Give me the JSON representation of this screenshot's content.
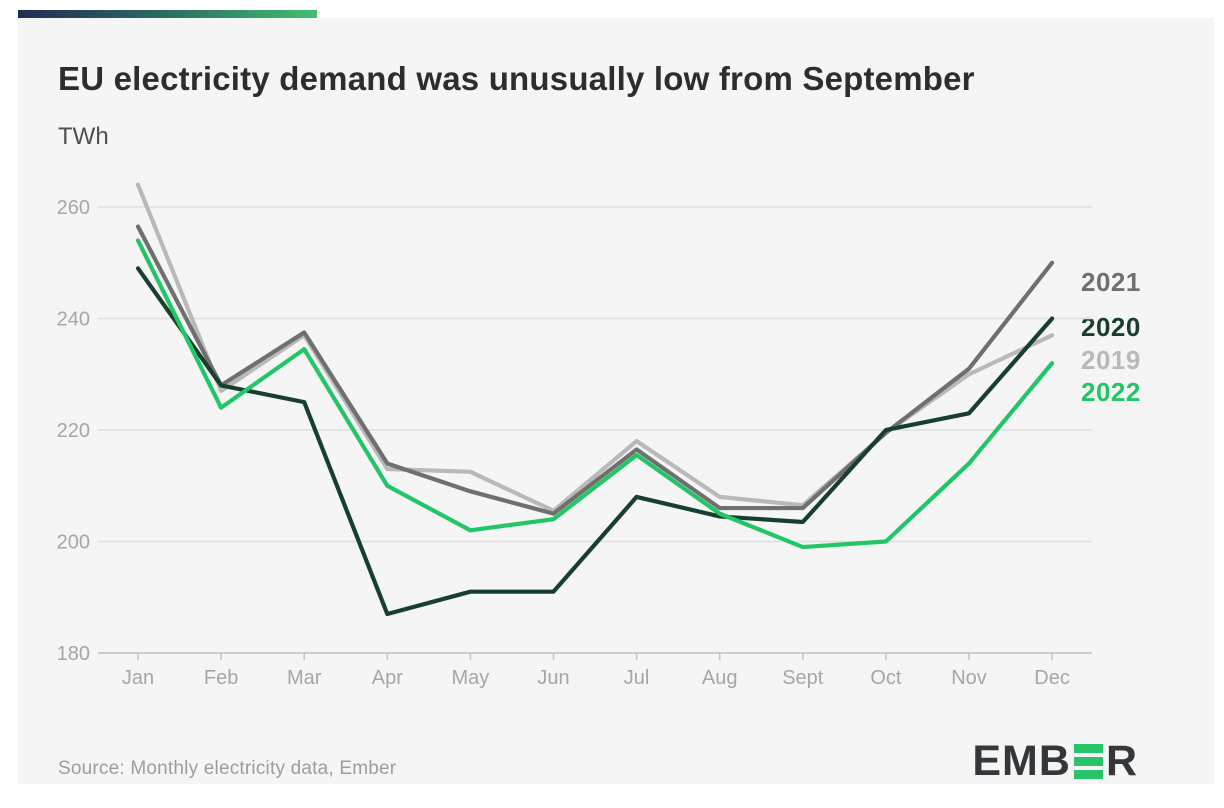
{
  "header": {
    "title": "EU electricity demand was unusually low from September",
    "unit_label": "TWh"
  },
  "chart_data": {
    "type": "line",
    "title": "EU electricity demand was unusually low from September",
    "ylabel": "TWh",
    "xlabel": "",
    "x": [
      "Jan",
      "Feb",
      "Mar",
      "Apr",
      "May",
      "Jun",
      "Jul",
      "Aug",
      "Sept",
      "Oct",
      "Nov",
      "Dec"
    ],
    "ylim": [
      180,
      266
    ],
    "yticks": [
      180,
      200,
      220,
      240,
      260
    ],
    "grid": true,
    "legend_position": "right-of-line-ends",
    "series": [
      {
        "name": "2019",
        "color": "#b9b9b9",
        "values": [
          264,
          227,
          237,
          213,
          212.5,
          205.5,
          218,
          208,
          206.5,
          219.5,
          230,
          237
        ]
      },
      {
        "name": "2021",
        "color": "#6f6f6f",
        "values": [
          256.5,
          228,
          237.5,
          214,
          209,
          205,
          216.5,
          206,
          206,
          219.5,
          231,
          250
        ]
      },
      {
        "name": "2020",
        "color": "#16402d",
        "values": [
          249,
          228,
          225,
          187,
          191,
          191,
          208,
          204.5,
          203.5,
          220,
          223,
          240
        ]
      },
      {
        "name": "2022",
        "color": "#22c666",
        "values": [
          254,
          224,
          234.5,
          210,
          202,
          204,
          215.5,
          205,
          199,
          200,
          214,
          232
        ]
      }
    ]
  },
  "legend": [
    {
      "label": "2021",
      "color": "#6f6f6f"
    },
    {
      "label": "2020",
      "color": "#16402d"
    },
    {
      "label": "2019",
      "color": "#b9b9b9"
    },
    {
      "label": "2022",
      "color": "#22c666"
    }
  ],
  "footer": {
    "source": "Source: Monthly electricity data, Ember",
    "logo_text_left": "EMB",
    "logo_text_right": "R"
  },
  "style": {
    "background": "#f5f5f5",
    "accent_from": "#222b54",
    "accent_mid": "#2a6e62",
    "accent_to": "#43bd6f",
    "gridline_color": "#dedede",
    "axis_color": "#c6c6c6",
    "logo_bar_color": "#27c468"
  }
}
